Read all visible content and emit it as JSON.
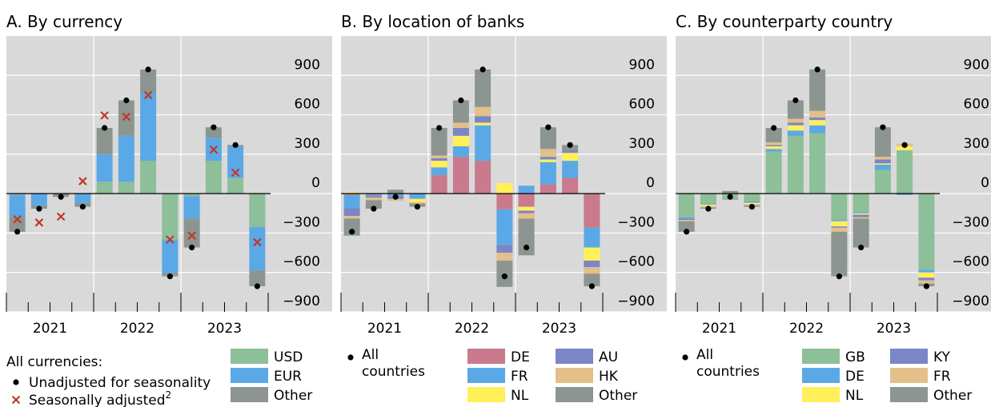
{
  "chart_data": [
    {
      "type": "stacked_bar",
      "title": "A. By currency",
      "categories": [
        null,
        null,
        null,
        null,
        null,
        null,
        null,
        null,
        null,
        null,
        null,
        null
      ],
      "groups": [
        "2021",
        "2022",
        "2023"
      ],
      "ylim": [
        -900,
        1200
      ],
      "yticks": [
        {
          "value": -900,
          "label": "−900"
        },
        {
          "value": -600,
          "label": "−600"
        },
        {
          "value": -300,
          "label": "−300"
        },
        0,
        300,
        600,
        900
      ],
      "grid": true,
      "series": [
        {
          "name": "USD",
          "color": "#8dbf98",
          "values": [
            -10,
            0,
            0,
            0,
            90,
            90,
            250,
            -350,
            -20,
            250,
            120,
            -255
          ]
        },
        {
          "name": "EUR",
          "color": "#5aa9e6",
          "values": [
            -170,
            -90,
            0,
            -70,
            210,
            350,
            515,
            -255,
            -170,
            175,
            240,
            -330
          ]
        },
        {
          "name": "Other",
          "color": "#8c9590",
          "values": [
            -110,
            -25,
            -25,
            -30,
            200,
            270,
            180,
            -25,
            -220,
            80,
            10,
            -120
          ]
        }
      ],
      "markers_heading": "All currencies:",
      "markers": [
        {
          "name": "Unadjusted for seasonality",
          "symbol": "dot",
          "color": "#000000",
          "values": [
            -290,
            -115,
            -25,
            -100,
            500,
            710,
            945,
            -630,
            -410,
            505,
            370,
            -705
          ]
        },
        {
          "name": "Seasonally adjusted",
          "note": "2",
          "symbol": "cross",
          "color": "#c0392b",
          "values": [
            -195,
            -220,
            -175,
            95,
            595,
            585,
            750,
            -350,
            -320,
            335,
            160,
            -370
          ]
        }
      ]
    },
    {
      "type": "stacked_bar",
      "title": "B. By location of banks",
      "categories": [
        null,
        null,
        null,
        null,
        null,
        null,
        null,
        null,
        null,
        null,
        null,
        null
      ],
      "groups": [
        "2021",
        "2022",
        "2023"
      ],
      "ylim": [
        -900,
        1200
      ],
      "yticks": [
        {
          "value": -900,
          "label": "−900"
        },
        {
          "value": -600,
          "label": "−600"
        },
        {
          "value": -300,
          "label": "−300"
        },
        0,
        300,
        600,
        900
      ],
      "grid": true,
      "series": [
        {
          "name": "DE",
          "color": "#c97a8c",
          "values": [
            -10,
            -10,
            0,
            0,
            140,
            280,
            250,
            -120,
            -100,
            70,
            120,
            -260
          ]
        },
        {
          "name": "FR",
          "color": "#5aa9e6",
          "values": [
            -100,
            -10,
            -20,
            -40,
            60,
            80,
            270,
            -270,
            60,
            170,
            130,
            -150
          ]
        },
        {
          "name": "NL",
          "color": "#fff05a",
          "values": [
            10,
            0,
            0,
            -25,
            50,
            80,
            20,
            80,
            -30,
            20,
            60,
            -100
          ]
        },
        {
          "name": "AU",
          "color": "#7b86c6",
          "values": [
            -60,
            -10,
            -20,
            0,
            20,
            60,
            50,
            -60,
            -20,
            20,
            20,
            -50
          ]
        },
        {
          "name": "HK",
          "color": "#e3bf8a",
          "values": [
            -20,
            -20,
            -15,
            -10,
            20,
            40,
            70,
            -60,
            -40,
            60,
            0,
            -50
          ]
        },
        {
          "name": "Other",
          "color": "#8c9590",
          "values": [
            -130,
            -65,
            30,
            -25,
            210,
            170,
            285,
            -200,
            -280,
            165,
            40,
            -95
          ]
        }
      ],
      "markers": [
        {
          "name": "All countries",
          "symbol": "dot",
          "color": "#000000",
          "values": [
            -290,
            -115,
            -25,
            -100,
            500,
            710,
            945,
            -630,
            -410,
            505,
            370,
            -705
          ]
        }
      ]
    },
    {
      "type": "stacked_bar",
      "title": "C. By counterparty country",
      "categories": [
        null,
        null,
        null,
        null,
        null,
        null,
        null,
        null,
        null,
        null,
        null,
        null
      ],
      "groups": [
        "2021",
        "2022",
        "2023"
      ],
      "ylim": [
        -900,
        1200
      ],
      "yticks": [
        {
          "value": -900,
          "label": "−900"
        },
        {
          "value": -600,
          "label": "−600"
        },
        {
          "value": -300,
          "label": "−300"
        },
        0,
        300,
        600,
        900
      ],
      "grid": true,
      "series": [
        {
          "name": "GB",
          "color": "#8dbf98",
          "values": [
            -180,
            -80,
            -40,
            -60,
            320,
            440,
            460,
            -200,
            -140,
            180,
            330,
            -580
          ]
        },
        {
          "name": "DE",
          "color": "#5aa9e6",
          "values": [
            -10,
            -5,
            0,
            -10,
            20,
            40,
            60,
            -10,
            -10,
            40,
            -10,
            -20
          ]
        },
        {
          "name": "NL",
          "color": "#fff05a",
          "values": [
            0,
            -10,
            0,
            -10,
            20,
            40,
            40,
            -40,
            -10,
            10,
            30,
            -40
          ]
        },
        {
          "name": "KY",
          "color": "#7b86c6",
          "values": [
            -10,
            0,
            -5,
            0,
            10,
            20,
            20,
            -10,
            -20,
            30,
            0,
            -20
          ]
        },
        {
          "name": "FR",
          "color": "#e3bf8a",
          "values": [
            -10,
            -10,
            0,
            -10,
            20,
            30,
            50,
            -30,
            -10,
            20,
            20,
            -25
          ]
        },
        {
          "name": "Other",
          "color": "#8c9590",
          "values": [
            -80,
            -10,
            20,
            -10,
            110,
            140,
            315,
            -340,
            -220,
            225,
            0,
            -20
          ]
        }
      ],
      "markers": [
        {
          "name": "All countries",
          "symbol": "dot",
          "color": "#000000",
          "values": [
            -290,
            -115,
            -25,
            -100,
            500,
            710,
            945,
            -630,
            -410,
            505,
            370,
            -705
          ]
        }
      ]
    }
  ]
}
